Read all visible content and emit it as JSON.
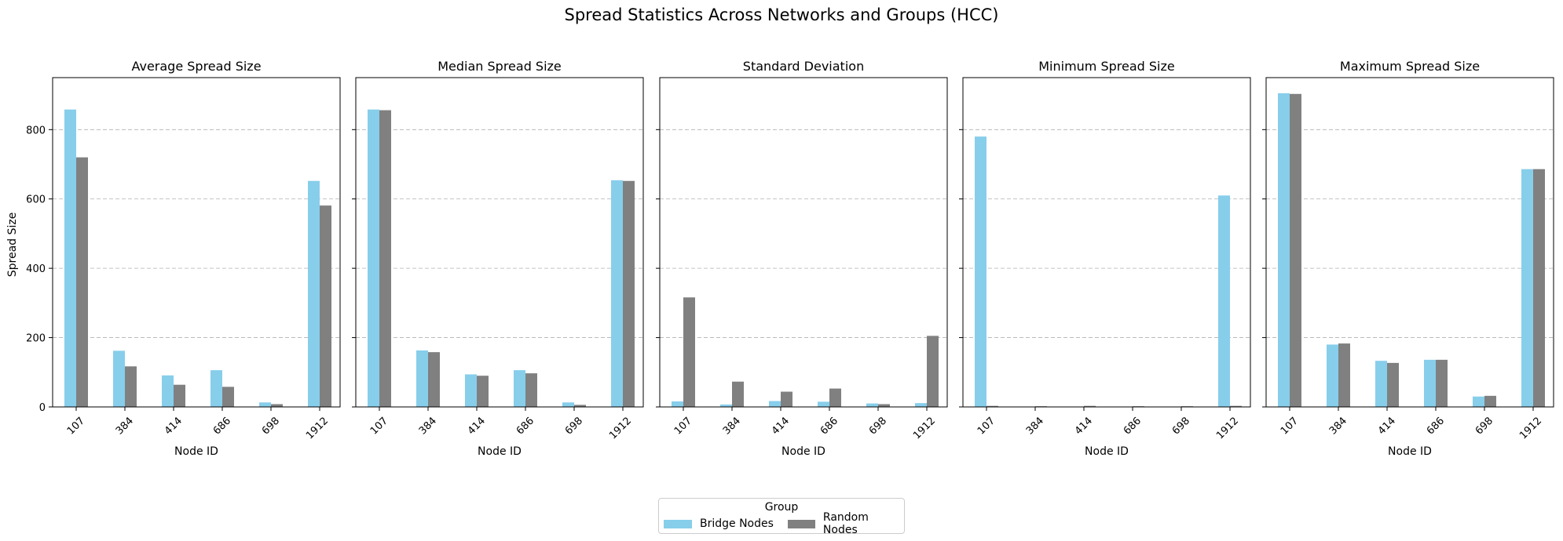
{
  "chart_data": {
    "type": "bar",
    "title": "Spread Statistics Across Networks and Groups (HCC)",
    "ylabel": "Spread Size",
    "xlabel": "Node ID",
    "categories": [
      "107",
      "384",
      "414",
      "686",
      "698",
      "1912"
    ],
    "ylim": [
      0,
      950
    ],
    "yticks": [
      0,
      200,
      400,
      600,
      800
    ],
    "grid": "y-dashed",
    "legend": {
      "title": "Group",
      "placement": "bottom-center",
      "entries": [
        "Bridge Nodes",
        "Random Nodes"
      ]
    },
    "colors": {
      "Bridge Nodes": "#87ceeb",
      "Random Nodes": "#808080"
    },
    "panels": [
      {
        "title": "Average Spread Size",
        "series": [
          {
            "name": "Bridge Nodes",
            "values": [
              858,
              162,
              91,
              106,
              13,
              652
            ]
          },
          {
            "name": "Random Nodes",
            "values": [
              720,
              117,
              64,
              58,
              8,
              581
            ]
          }
        ]
      },
      {
        "title": "Median Spread Size",
        "series": [
          {
            "name": "Bridge Nodes",
            "values": [
              858,
              163,
              94,
              106,
              13,
              654
            ]
          },
          {
            "name": "Random Nodes",
            "values": [
              856,
              158,
              90,
              97,
              6,
              652
            ]
          }
        ]
      },
      {
        "title": "Standard Deviation",
        "series": [
          {
            "name": "Bridge Nodes",
            "values": [
              16,
              7,
              17,
              15,
              10,
              11
            ]
          },
          {
            "name": "Random Nodes",
            "values": [
              316,
              73,
              44,
              53,
              8,
              205
            ]
          }
        ]
      },
      {
        "title": "Minimum Spread Size",
        "series": [
          {
            "name": "Bridge Nodes",
            "values": [
              780,
              1,
              1,
              1,
              1,
              610
            ]
          },
          {
            "name": "Random Nodes",
            "values": [
              3,
              2,
              3,
              2,
              2,
              3
            ]
          }
        ]
      },
      {
        "title": "Maximum Spread Size",
        "series": [
          {
            "name": "Bridge Nodes",
            "values": [
              905,
              180,
              133,
              136,
              30,
              686
            ]
          },
          {
            "name": "Random Nodes",
            "values": [
              903,
              183,
              127,
              136,
              32,
              686
            ]
          }
        ]
      }
    ]
  }
}
